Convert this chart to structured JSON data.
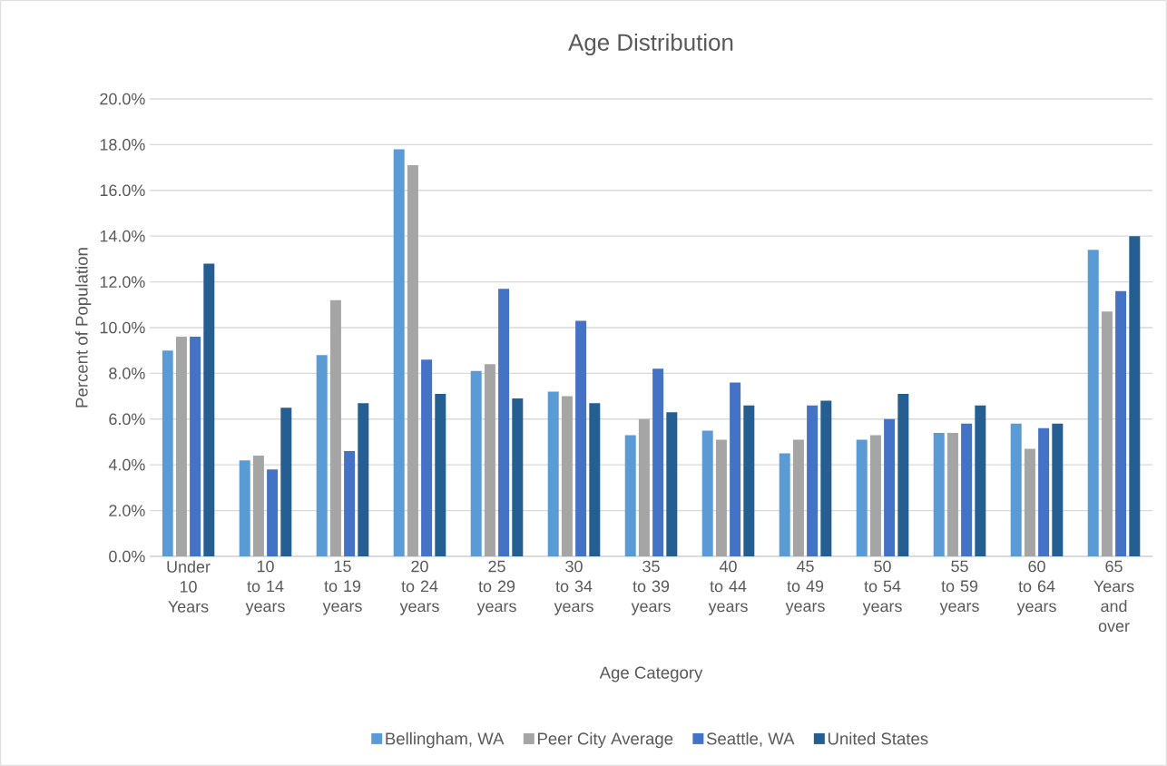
{
  "chart_data": {
    "type": "bar",
    "title": "Age Distribution",
    "xlabel": "Age Category",
    "ylabel": "Percent of Population",
    "categories": [
      "Under 10 Years",
      "10 to 14 years",
      "15 to 19 years",
      "20 to 24 years",
      "25 to 29 years",
      "30 to 34 years",
      "35 to 39 years",
      "40 to 44 years",
      "45 to 49 years",
      "50 to 54 years",
      "55 to 59 years",
      "60 to 64 years",
      "65 Years and over"
    ],
    "series": [
      {
        "name": "Bellingham, WA",
        "color": "#5b9bd5",
        "values": [
          9.0,
          4.2,
          8.8,
          17.8,
          8.1,
          7.2,
          5.3,
          5.5,
          4.5,
          5.1,
          5.4,
          5.8,
          13.4
        ]
      },
      {
        "name": "Peer City Average",
        "color": "#a5a5a5",
        "values": [
          9.6,
          4.4,
          11.2,
          17.1,
          8.4,
          7.0,
          6.0,
          5.1,
          5.1,
          5.3,
          5.4,
          4.7,
          10.7
        ]
      },
      {
        "name": "Seattle, WA",
        "color": "#4472c4",
        "values": [
          9.6,
          3.8,
          4.6,
          8.6,
          11.7,
          10.3,
          8.2,
          7.6,
          6.6,
          6.0,
          5.8,
          5.6,
          11.6
        ]
      },
      {
        "name": "United States",
        "color": "#255e91",
        "values": [
          12.8,
          6.5,
          6.7,
          7.1,
          6.9,
          6.7,
          6.3,
          6.6,
          6.8,
          7.1,
          6.6,
          5.8,
          14.0
        ]
      }
    ],
    "ylim": [
      0,
      20
    ],
    "yticks": [
      {
        "value": 0,
        "label": "0.0%"
      },
      {
        "value": 2,
        "label": "2.0%"
      },
      {
        "value": 4,
        "label": "4.0%"
      },
      {
        "value": 6,
        "label": "6.0%"
      },
      {
        "value": 8,
        "label": "8.0%"
      },
      {
        "value": 10,
        "label": "10.0%"
      },
      {
        "value": 12,
        "label": "12.0%"
      },
      {
        "value": 14,
        "label": "14.0%"
      },
      {
        "value": 16,
        "label": "16.0%"
      },
      {
        "value": 18,
        "label": "18.0%"
      },
      {
        "value": 20,
        "label": "20.0%"
      }
    ],
    "grid": "y",
    "legend": "bottom"
  }
}
